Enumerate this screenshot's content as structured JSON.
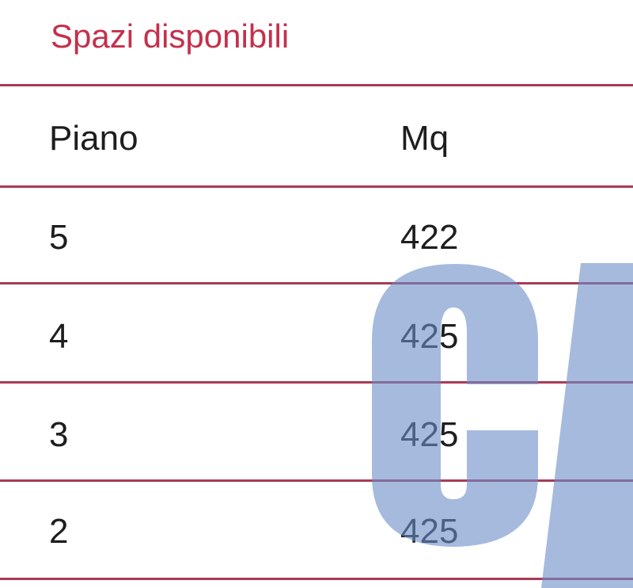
{
  "section_title": "Spazi disponibili",
  "table": {
    "headers": [
      "Piano",
      "Mq"
    ],
    "rows": [
      [
        "5",
        "422"
      ],
      [
        "4",
        "425"
      ],
      [
        "3",
        "425"
      ],
      [
        "2",
        "425"
      ]
    ]
  },
  "colors": {
    "title": "#c4304c",
    "rule": "#a83c55",
    "watermark": "#6a8cc8"
  }
}
